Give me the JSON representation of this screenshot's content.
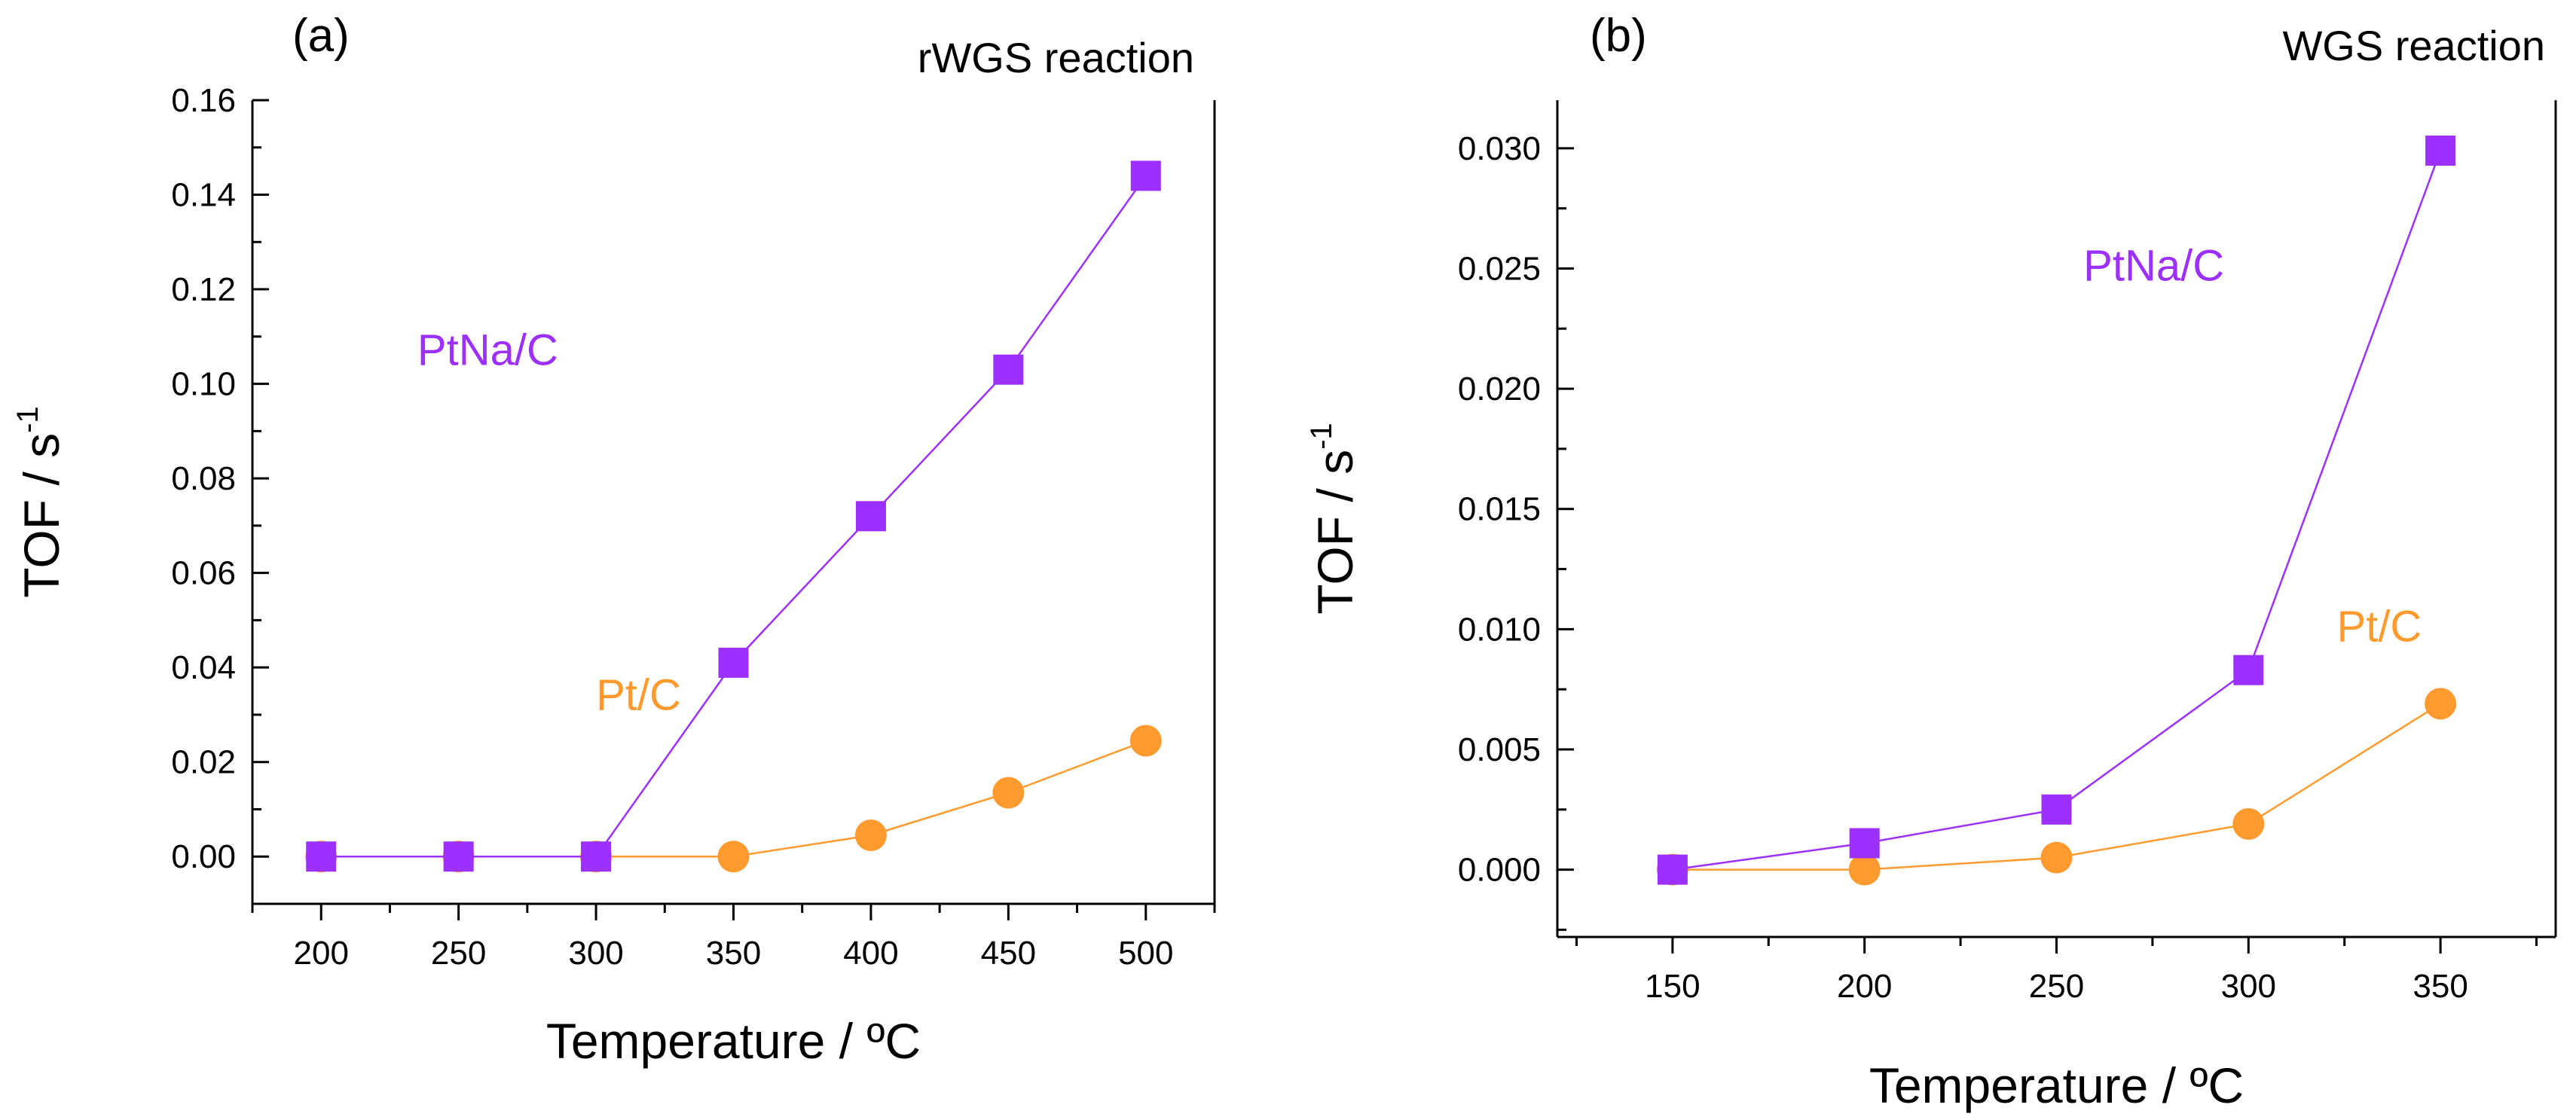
{
  "chart_data": [
    {
      "type": "line",
      "panel_label": "(a)",
      "title": "rWGS reaction",
      "xlabel": "Temperature / ºC",
      "ylabel_main": "TOF / s",
      "ylabel_sup": "-1",
      "xlim": [
        175,
        525
      ],
      "ylim": [
        -0.01,
        0.16
      ],
      "xticks": [
        200,
        250,
        300,
        350,
        400,
        450,
        500
      ],
      "xtick_labels": [
        "200",
        "250",
        "300",
        "350",
        "400",
        "450",
        "500"
      ],
      "yticks": [
        0,
        0.02,
        0.04,
        0.06,
        0.08,
        0.1,
        0.12,
        0.14,
        0.16
      ],
      "ytick_labels": [
        "0.00",
        "0.02",
        "0.04",
        "0.06",
        "0.08",
        "0.10",
        "0.12",
        "0.14",
        "0.16"
      ],
      "series": [
        {
          "name": "Pt/C",
          "label": "Pt/C",
          "marker": "circle",
          "color": "#ff9a2e",
          "label_at": [
            300,
            0.031
          ],
          "x": [
            200,
            250,
            300,
            350,
            400,
            450,
            500
          ],
          "y": [
            0,
            0,
            0,
            0,
            0.0045,
            0.0135,
            0.0245
          ]
        },
        {
          "name": "PtNa/C",
          "label": "PtNa/C",
          "marker": "square",
          "color": "#9b30ff",
          "label_at": [
            235,
            0.104
          ],
          "x": [
            200,
            250,
            300,
            350,
            400,
            450,
            500
          ],
          "y": [
            0,
            0,
            0,
            0.041,
            0.072,
            0.103,
            0.144
          ]
        }
      ]
    },
    {
      "type": "line",
      "panel_label": "(b)",
      "title": "WGS reaction",
      "xlabel": "Temperature / ºC",
      "ylabel_main": "TOF / s",
      "ylabel_sup": "-1",
      "xlim": [
        120,
        380
      ],
      "ylim": [
        -0.0028,
        0.032
      ],
      "xticks": [
        150,
        200,
        250,
        300,
        350
      ],
      "xtick_labels": [
        "150",
        "200",
        "250",
        "300",
        "350"
      ],
      "yticks": [
        0,
        0.005,
        0.01,
        0.015,
        0.02,
        0.025,
        0.03
      ],
      "ytick_labels": [
        "0.000",
        "0.005",
        "0.010",
        "0.015",
        "0.020",
        "0.025",
        "0.030"
      ],
      "series": [
        {
          "name": "Pt/C",
          "label": "Pt/C",
          "marker": "circle",
          "color": "#ff9a2e",
          "label_at": [
            323,
            0.0095
          ],
          "x": [
            150,
            200,
            250,
            300,
            350
          ],
          "y": [
            0,
            0,
            0.0005,
            0.0019,
            0.0069
          ]
        },
        {
          "name": "PtNa/C",
          "label": "PtNa/C",
          "marker": "square",
          "color": "#9b30ff",
          "label_at": [
            257,
            0.0245
          ],
          "x": [
            150,
            200,
            250,
            300,
            350
          ],
          "y": [
            0,
            0.0011,
            0.0025,
            0.0083,
            0.0299
          ]
        }
      ]
    }
  ]
}
